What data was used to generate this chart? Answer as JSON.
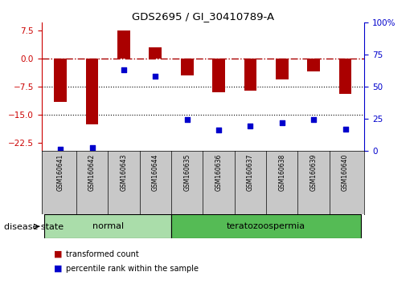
{
  "title": "GDS2695 / GI_30410789-A",
  "samples": [
    "GSM160641",
    "GSM160642",
    "GSM160643",
    "GSM160644",
    "GSM160635",
    "GSM160636",
    "GSM160637",
    "GSM160638",
    "GSM160639",
    "GSM160640"
  ],
  "transformed_count": [
    -11.5,
    -17.5,
    7.5,
    3.0,
    -4.5,
    -9.0,
    -8.5,
    -5.5,
    -3.5,
    -9.5
  ],
  "percentile_rank": [
    1,
    2,
    63,
    58,
    24,
    16,
    19,
    22,
    24,
    17
  ],
  "bar_color": "#AA0000",
  "dot_color": "#0000CC",
  "ylim_left": [
    -24.5,
    9.5
  ],
  "yticks_left": [
    -22.5,
    -15,
    -7.5,
    0,
    7.5
  ],
  "ylim_right": [
    0,
    100
  ],
  "yticks_right": [
    0,
    25,
    50,
    75,
    100
  ],
  "dotted_lines": [
    -7.5,
    -15
  ],
  "disease_state_label": "disease state",
  "legend_bar_label": "transformed count",
  "legend_dot_label": "percentile rank within the sample",
  "normal_group_color": "#aaddaa",
  "tera_group_color": "#55bb55",
  "label_bg_color": "#c8c8c8"
}
